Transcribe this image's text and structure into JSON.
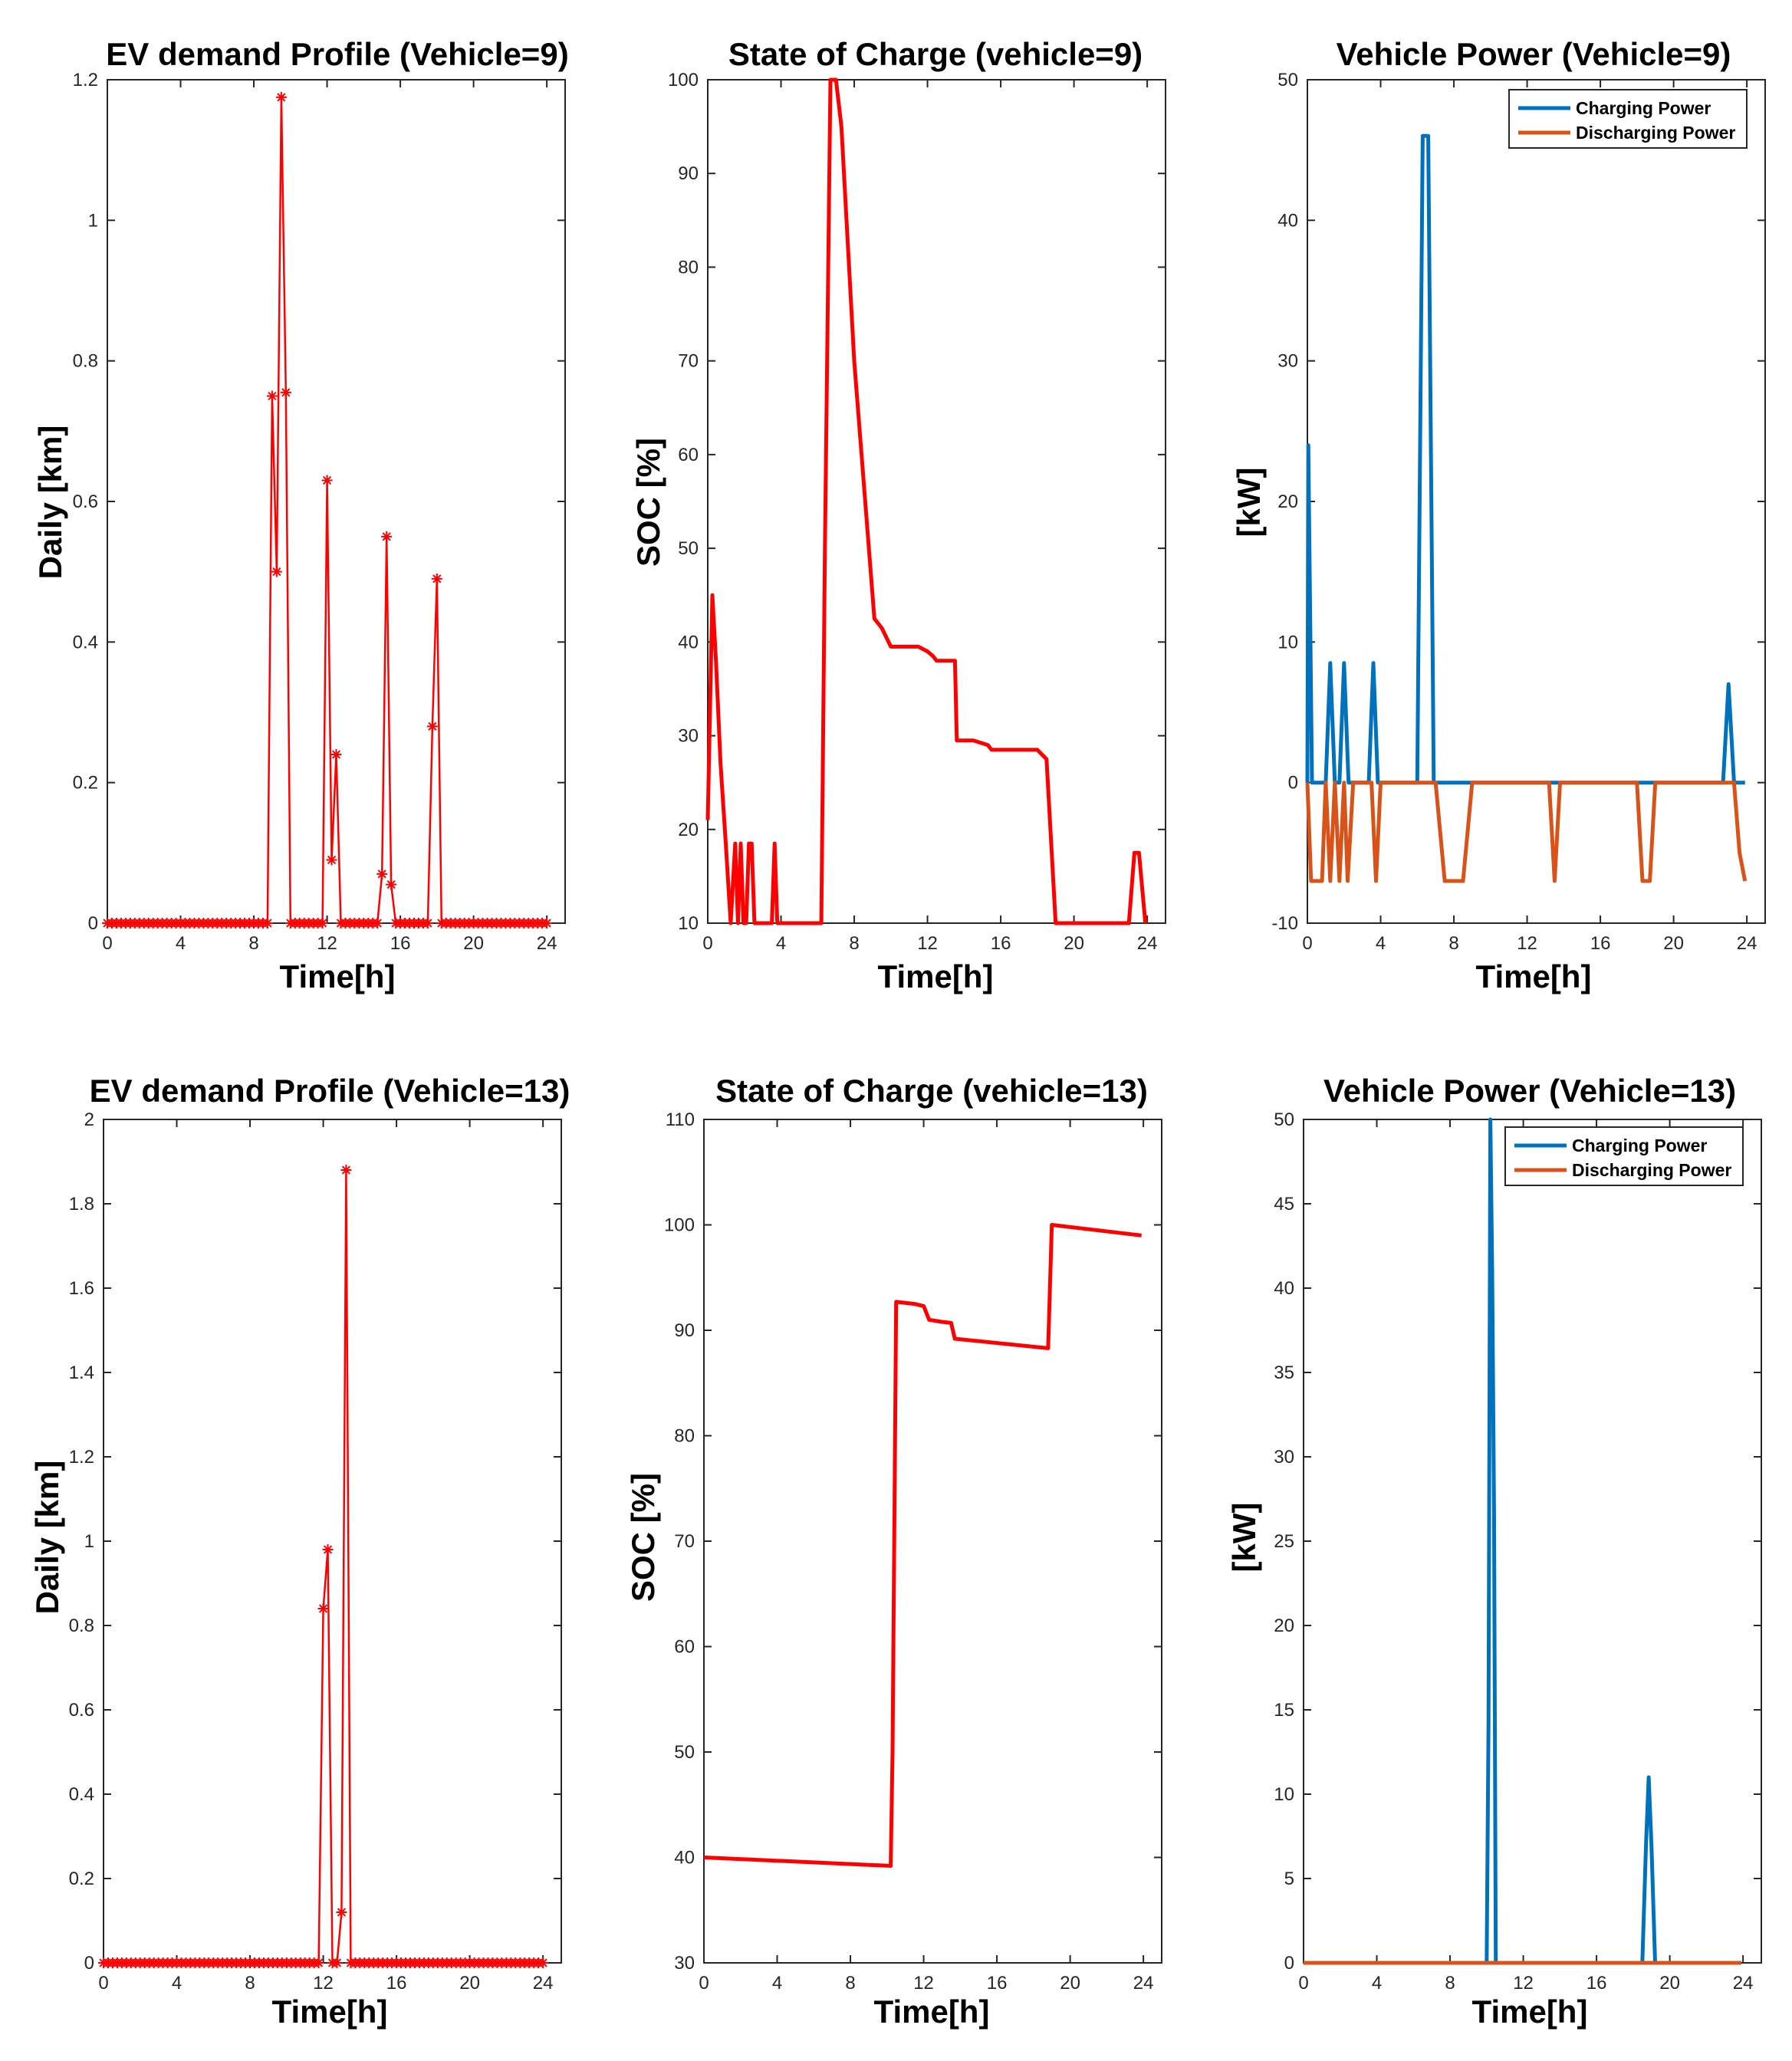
{
  "chart_data": [
    {
      "type": "line",
      "title": "EV demand Profile (Vehicle=9)",
      "xlabel": "Time[h]",
      "ylabel": "Daily [km]",
      "xlim": [
        0,
        25
      ],
      "ylim": [
        0,
        1.2
      ],
      "xticks": [
        0,
        4,
        8,
        12,
        16,
        20,
        24
      ],
      "yticks": [
        0,
        0.2,
        0.4,
        0.6,
        0.8,
        1,
        1.2
      ],
      "ytick_labels": [
        "0",
        "0.2",
        "0.4",
        "0.6",
        "0.8",
        "1",
        "1.2"
      ],
      "color": "#ff0000",
      "markers": true,
      "series": [
        {
          "name": "Daily",
          "x": [
            0,
            0.25,
            0.5,
            0.75,
            1,
            1.25,
            1.5,
            1.75,
            2,
            2.25,
            2.5,
            2.75,
            3,
            3.25,
            3.5,
            3.75,
            4,
            4.25,
            4.5,
            4.75,
            5,
            5.25,
            5.5,
            5.75,
            6,
            6.25,
            6.5,
            6.75,
            7,
            7.25,
            7.5,
            7.75,
            8,
            8.25,
            8.5,
            8.75,
            9,
            9.25,
            9.5,
            9.75,
            10,
            10.25,
            10.5,
            10.75,
            11,
            11.25,
            11.5,
            11.75,
            12,
            12.25,
            12.5,
            12.75,
            13,
            13.25,
            13.5,
            13.75,
            14,
            14.25,
            14.5,
            14.75,
            15,
            15.25,
            15.5,
            15.75,
            16,
            16.25,
            16.5,
            16.75,
            17,
            17.25,
            17.5,
            17.75,
            18,
            18.25,
            18.5,
            18.75,
            19,
            19.25,
            19.5,
            19.75,
            20,
            20.25,
            20.5,
            20.75,
            21,
            21.25,
            21.5,
            21.75,
            22,
            22.25,
            22.5,
            22.75,
            23,
            23.25,
            23.5,
            23.75,
            24
          ],
          "y": [
            0,
            0,
            0,
            0,
            0,
            0,
            0,
            0,
            0,
            0,
            0,
            0,
            0,
            0,
            0,
            0,
            0,
            0,
            0,
            0,
            0,
            0,
            0,
            0,
            0,
            0,
            0,
            0,
            0,
            0,
            0,
            0,
            0,
            0,
            0,
            0,
            0.75,
            0.5,
            1.175,
            0.755,
            0,
            0,
            0,
            0,
            0,
            0,
            0,
            0,
            0.63,
            0.09,
            0.24,
            0,
            0,
            0,
            0,
            0,
            0,
            0,
            0,
            0,
            0.07,
            0.55,
            0.055,
            0,
            0,
            0,
            0,
            0,
            0,
            0,
            0,
            0.28,
            0.49,
            0,
            0,
            0,
            0,
            0,
            0,
            0,
            0,
            0,
            0,
            0,
            0,
            0,
            0,
            0,
            0,
            0,
            0,
            0,
            0,
            0,
            0,
            0,
            0
          ]
        }
      ]
    },
    {
      "type": "line",
      "title": "State of Charge (vehicle=9)",
      "xlabel": "Time[h]",
      "ylabel": "SOC [%]",
      "xlim": [
        0,
        25
      ],
      "ylim": [
        10,
        100
      ],
      "xticks": [
        0,
        4,
        8,
        12,
        16,
        20,
        24
      ],
      "yticks": [
        10,
        20,
        30,
        40,
        50,
        60,
        70,
        80,
        90,
        100
      ],
      "ytick_labels": [
        "10",
        "20",
        "30",
        "40",
        "50",
        "60",
        "70",
        "80",
        "90",
        "100"
      ],
      "color": "#ff0000",
      "series": [
        {
          "name": "SOC",
          "x": [
            0,
            0.25,
            0.45,
            0.7,
            1.0,
            1.25,
            1.5,
            1.65,
            1.8,
            1.95,
            2.1,
            2.25,
            2.4,
            2.55,
            2.8,
            3.5,
            3.65,
            3.8,
            4.0,
            6.2,
            6.4,
            6.7,
            7.0,
            7.3,
            8.0,
            9.1,
            9.5,
            10.0,
            11.5,
            12.0,
            12.3,
            12.5,
            13.5,
            13.6,
            14.5,
            15.3,
            15.5,
            18.0,
            18.5,
            19.0,
            20.0,
            23.0,
            23.3,
            23.55,
            23.9
          ],
          "y": [
            21,
            45,
            38,
            27,
            18,
            10,
            18.5,
            10,
            18.5,
            10,
            10,
            18.5,
            18.5,
            10,
            10,
            10,
            18.5,
            10,
            10,
            10,
            50,
            100,
            100,
            95,
            70,
            42.5,
            41.5,
            39.5,
            39.5,
            39,
            38.5,
            38,
            38,
            29.5,
            29.5,
            29,
            28.5,
            28.5,
            27.5,
            10,
            10,
            10,
            17.5,
            17.5,
            10
          ]
        }
      ]
    },
    {
      "type": "line",
      "title": "Vehicle Power (Vehicle=9)",
      "xlabel": "Time[h]",
      "ylabel": "[kW]",
      "xlim": [
        0,
        25
      ],
      "ylim": [
        -10,
        50
      ],
      "xticks": [
        0,
        4,
        8,
        12,
        16,
        20,
        24
      ],
      "yticks": [
        -10,
        0,
        10,
        20,
        30,
        40,
        50
      ],
      "ytick_labels": [
        "-10",
        "0",
        "10",
        "20",
        "30",
        "40",
        "50"
      ],
      "legend": [
        "Charging Power",
        "Discharging Power"
      ],
      "series": [
        {
          "name": "Charging Power",
          "color": "#0072bd",
          "x": [
            0,
            0.05,
            0.25,
            1.0,
            1.25,
            1.5,
            1.75,
            2.0,
            2.25,
            2.5,
            3.35,
            3.6,
            3.85,
            6.0,
            6.3,
            6.6,
            6.9,
            22.7,
            23.0,
            23.3,
            23.5,
            23.9
          ],
          "y": [
            0,
            24,
            0,
            0,
            8.5,
            0,
            0,
            8.5,
            0,
            0,
            0,
            8.5,
            0,
            0,
            46,
            46,
            0,
            0,
            7,
            0,
            0,
            0
          ]
        },
        {
          "name": "Discharging Power",
          "color": "#d95319",
          "x": [
            0,
            0.2,
            0.5,
            0.8,
            1.0,
            1.25,
            1.5,
            1.75,
            2.0,
            2.2,
            2.5,
            2.7,
            3.5,
            3.75,
            4.0,
            7.0,
            7.5,
            8.5,
            9.0,
            13.2,
            13.5,
            13.8,
            18.0,
            18.3,
            18.7,
            19.0,
            23.3,
            23.6,
            23.9
          ],
          "y": [
            0,
            -7,
            -7,
            -7,
            0,
            -7,
            0,
            -7,
            0,
            -7,
            0,
            0,
            0,
            -7,
            0,
            0,
            -7,
            -7,
            0,
            0,
            -7,
            0,
            0,
            -7,
            -7,
            0,
            0,
            -5,
            -7
          ]
        }
      ]
    },
    {
      "type": "line",
      "title": "EV demand Profile (Vehicle=13)",
      "xlabel": "Time[h]",
      "ylabel": "Daily [km]",
      "xlim": [
        0,
        25
      ],
      "ylim": [
        0,
        2
      ],
      "xticks": [
        0,
        4,
        8,
        12,
        16,
        20,
        24
      ],
      "yticks": [
        0,
        0.2,
        0.4,
        0.6,
        0.8,
        1,
        1.2,
        1.4,
        1.6,
        1.8,
        2
      ],
      "ytick_labels": [
        "0",
        "0.2",
        "0.4",
        "0.6",
        "0.8",
        "1",
        "1.2",
        "1.4",
        "1.6",
        "1.8",
        "2"
      ],
      "color": "#ff0000",
      "markers": true,
      "series": [
        {
          "name": "Daily",
          "x": [
            0,
            0.25,
            0.5,
            0.75,
            1,
            1.25,
            1.5,
            1.75,
            2,
            2.25,
            2.5,
            2.75,
            3,
            3.25,
            3.5,
            3.75,
            4,
            4.25,
            4.5,
            4.75,
            5,
            5.25,
            5.5,
            5.75,
            6,
            6.25,
            6.5,
            6.75,
            7,
            7.25,
            7.5,
            7.75,
            8,
            8.25,
            8.5,
            8.75,
            9,
            9.25,
            9.5,
            9.75,
            10,
            10.25,
            10.5,
            10.75,
            11,
            11.25,
            11.5,
            11.75,
            12,
            12.25,
            12.5,
            12.75,
            13,
            13.25,
            13.5,
            13.75,
            14,
            14.25,
            14.5,
            14.75,
            15,
            15.25,
            15.5,
            15.75,
            16,
            16.25,
            16.5,
            16.75,
            17,
            17.25,
            17.5,
            17.75,
            18,
            18.25,
            18.5,
            18.75,
            19,
            19.25,
            19.5,
            19.75,
            20,
            20.25,
            20.5,
            20.75,
            21,
            21.25,
            21.5,
            21.75,
            22,
            22.25,
            22.5,
            22.75,
            23,
            23.25,
            23.5,
            23.75,
            24
          ],
          "y": [
            0,
            0,
            0,
            0,
            0,
            0,
            0,
            0,
            0,
            0,
            0,
            0,
            0,
            0,
            0,
            0,
            0,
            0,
            0,
            0,
            0,
            0,
            0,
            0,
            0,
            0,
            0,
            0,
            0,
            0,
            0,
            0,
            0,
            0,
            0,
            0,
            0,
            0,
            0,
            0,
            0,
            0,
            0,
            0,
            0,
            0,
            0,
            0,
            0.84,
            0.98,
            0,
            0,
            0.12,
            1.88,
            0,
            0,
            0,
            0,
            0,
            0,
            0,
            0,
            0,
            0,
            0,
            0,
            0,
            0,
            0,
            0,
            0,
            0,
            0,
            0,
            0,
            0,
            0,
            0,
            0,
            0,
            0,
            0,
            0,
            0,
            0,
            0,
            0,
            0,
            0,
            0,
            0,
            0,
            0,
            0,
            0,
            0,
            0
          ]
        }
      ]
    },
    {
      "type": "line",
      "title": "State of Charge (vehicle=13)",
      "xlabel": "Time[h]",
      "ylabel": "SOC [%]",
      "xlim": [
        0,
        25
      ],
      "ylim": [
        30,
        110
      ],
      "xticks": [
        0,
        4,
        8,
        12,
        16,
        20,
        24
      ],
      "yticks": [
        30,
        40,
        50,
        60,
        70,
        80,
        90,
        100,
        110
      ],
      "ytick_labels": [
        "30",
        "40",
        "50",
        "60",
        "70",
        "80",
        "90",
        "100",
        "110"
      ],
      "color": "#ff0000",
      "series": [
        {
          "name": "SOC",
          "x": [
            0,
            10.2,
            10.3,
            10.5,
            11.5,
            12.0,
            12.3,
            13.0,
            13.5,
            13.7,
            18.8,
            19.0,
            23.9
          ],
          "y": [
            40,
            39.2,
            50,
            92.7,
            92.5,
            92.3,
            91,
            90.8,
            90.7,
            89.2,
            88.3,
            100,
            99
          ]
        }
      ]
    },
    {
      "type": "line",
      "title": "Vehicle Power (Vehicle=13)",
      "xlabel": "Time[h]",
      "ylabel": "[kW]",
      "xlim": [
        0,
        25
      ],
      "ylim": [
        0,
        50
      ],
      "xticks": [
        0,
        4,
        8,
        12,
        16,
        20,
        24
      ],
      "yticks": [
        0,
        5,
        10,
        15,
        20,
        25,
        30,
        35,
        40,
        45,
        50
      ],
      "ytick_labels": [
        "0",
        "5",
        "10",
        "15",
        "20",
        "25",
        "30",
        "35",
        "40",
        "45",
        "50"
      ],
      "legend": [
        "Charging Power",
        "Discharging Power"
      ],
      "series": [
        {
          "name": "Charging Power",
          "color": "#0072bd",
          "x": [
            0,
            10.0,
            10.1,
            10.2,
            10.3,
            10.4,
            10.5,
            18.5,
            18.7,
            18.85,
            19.0,
            19.2,
            23.9
          ],
          "y": [
            0,
            0,
            14,
            50,
            41,
            27,
            0,
            0,
            7,
            11,
            7,
            0,
            0
          ]
        },
        {
          "name": "Discharging Power",
          "color": "#d95319",
          "x": [
            0,
            23.9
          ],
          "y": [
            0,
            0
          ]
        }
      ]
    }
  ]
}
